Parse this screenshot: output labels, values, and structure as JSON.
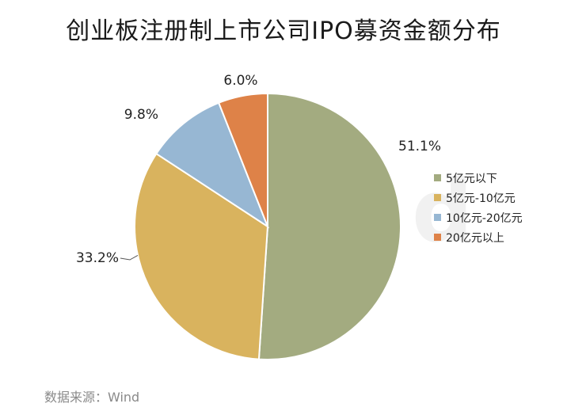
{
  "chart_data": {
    "type": "pie",
    "title": "创业板注册制上市公司IPO募资金额分布",
    "categories": [
      "5亿元以下",
      "5亿元-10亿元",
      "10亿元-20亿元",
      "20亿元以上"
    ],
    "values": [
      51.1,
      33.2,
      9.8,
      6.0
    ],
    "value_labels": [
      "51.1%",
      "33.2%",
      "9.8%",
      "6.0%"
    ],
    "colors": [
      "#A3AB80",
      "#D9B35E",
      "#97B7D3",
      "#DE8248"
    ],
    "legend_position": "right",
    "start_angle_deg": 0,
    "direction": "clockwise"
  },
  "watermark": "Win.d",
  "source_note": "数据来源：Wind"
}
